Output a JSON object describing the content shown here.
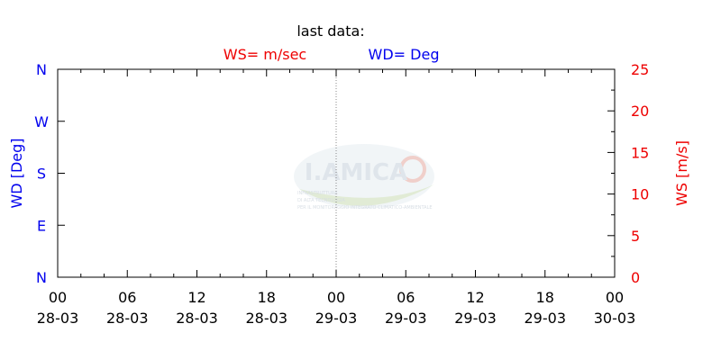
{
  "header": {
    "last_data_label": "last data:",
    "ws_unit_label": "WS= m/sec",
    "wd_unit_label": "WD= Deg"
  },
  "colors": {
    "wd": "#0000ee",
    "ws": "#ee0000",
    "axis": "#000000",
    "midline": "#888888",
    "watermark": "#b9c7d6"
  },
  "watermark": {
    "name": "I.AMICA",
    "lines": [
      "INFRASTRUTTURA",
      "DI ALTA TECNOLOGIA",
      "PER IL MONITORAGGIO INTEGRATO CLIMATICO-AMBIENTALE"
    ]
  },
  "chart_data": {
    "type": "line",
    "series": [],
    "y_left": {
      "label": "WD [Deg]",
      "ticks": [
        "N",
        "E",
        "S",
        "W",
        "N"
      ],
      "range": [
        0,
        360
      ]
    },
    "y_right": {
      "label": "WS [m/s]",
      "ticks": [
        "0",
        "5",
        "10",
        "15",
        "20",
        "25"
      ],
      "range": [
        0,
        25
      ]
    },
    "x": {
      "ticks": [
        {
          "time": "00",
          "date": "28-03"
        },
        {
          "time": "06",
          "date": "28-03"
        },
        {
          "time": "12",
          "date": "28-03"
        },
        {
          "time": "18",
          "date": "28-03"
        },
        {
          "time": "00",
          "date": "29-03"
        },
        {
          "time": "06",
          "date": "29-03"
        },
        {
          "time": "12",
          "date": "29-03"
        },
        {
          "time": "18",
          "date": "29-03"
        },
        {
          "time": "00",
          "date": "30-03"
        }
      ],
      "range": [
        "28-03 00",
        "30-03 00"
      ],
      "divider": "29-03 00"
    },
    "grid": false,
    "legend": "top"
  }
}
